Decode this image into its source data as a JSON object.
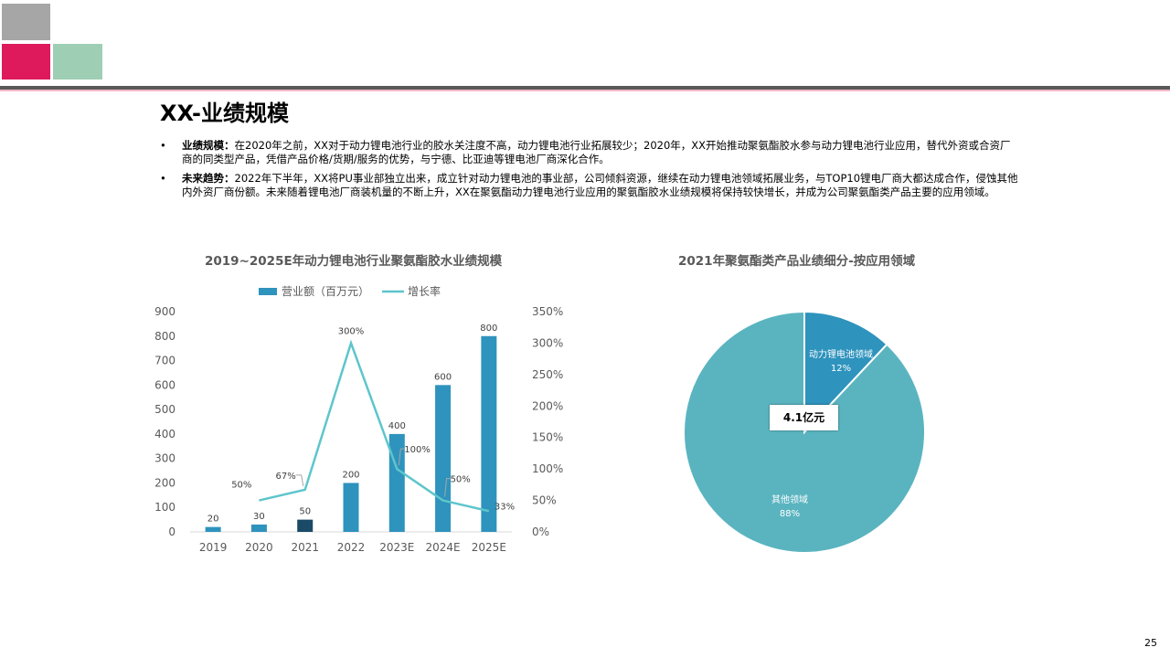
{
  "slide": {
    "title": "XX-业绩规模",
    "page_number": "25",
    "colors": {
      "gray_sq": "#a6a6a6",
      "magenta_sq": "#de1a5c",
      "mint_sq": "#9ecfb5",
      "bar": "#2e93bd",
      "bar_highlight": "#1b4a66",
      "line": "#5ec5cc",
      "pie_main": "#5ab4c0",
      "pie_slice": "#2e93bd"
    }
  },
  "bullets": [
    {
      "label": "业绩规模：",
      "text": "在2020年之前，XX对于动力锂电池行业的胶水关注度不高，动力锂电池行业拓展较少；2020年，XX开始推动聚氨酯胶水参与动力锂电池行业应用，替代外资或合资厂商的同类型产品，凭借产品价格/货期/服务的优势，与宁德、比亚迪等锂电池厂商深化合作。"
    },
    {
      "label": "未来趋势：",
      "text": "2022年下半年，XX将PU事业部独立出来，成立针对动力锂电池的事业部，公司倾斜资源，继续在动力锂电池领域拓展业务，与TOP10锂电厂商大都达成合作，侵蚀其他内外资厂商份额。未来随着锂电池厂商装机量的不断上升，XX在聚氨酯动力锂电池行业应用的聚氨酯胶水业绩规模将保持较快增长，并成为公司聚氨酯类产品主要的应用领域。"
    }
  ],
  "chart_data": [
    {
      "type": "bar",
      "title": "2019~2025E年动力锂电池行业聚氨酯胶水业绩规模",
      "categories": [
        "2019",
        "2020",
        "2021",
        "2022",
        "2023E",
        "2024E",
        "2025E"
      ],
      "series": [
        {
          "name": "营业额（百万元）",
          "type": "bar",
          "values": [
            20,
            30,
            50,
            200,
            400,
            600,
            800
          ],
          "labels": [
            "20",
            "30",
            "50",
            "200",
            "400",
            "600",
            "800"
          ]
        },
        {
          "name": "增长率",
          "type": "line",
          "axis": "right",
          "values": [
            null,
            50,
            67,
            300,
            100,
            50,
            33
          ],
          "labels": [
            "",
            "50%",
            "67%",
            "300%",
            "100%",
            "50%",
            "33%"
          ]
        }
      ],
      "ylim": [
        0,
        900
      ],
      "y_ticks": [
        "0",
        "100",
        "200",
        "300",
        "400",
        "500",
        "600",
        "700",
        "800",
        "900"
      ],
      "y2lim": [
        0,
        350
      ],
      "y2_ticks": [
        "0%",
        "50%",
        "100%",
        "150%",
        "200%",
        "250%",
        "300%",
        "350%"
      ],
      "legend": "top"
    },
    {
      "type": "pie",
      "title": "2021年聚氨酯类产品业绩细分-按应用领域",
      "slices": [
        {
          "label": "动力锂电池领域",
          "value": 12,
          "pct": "12%"
        },
        {
          "label": "其他领域",
          "value": 88,
          "pct": "88%"
        }
      ],
      "center_label": "4.1亿元"
    }
  ]
}
